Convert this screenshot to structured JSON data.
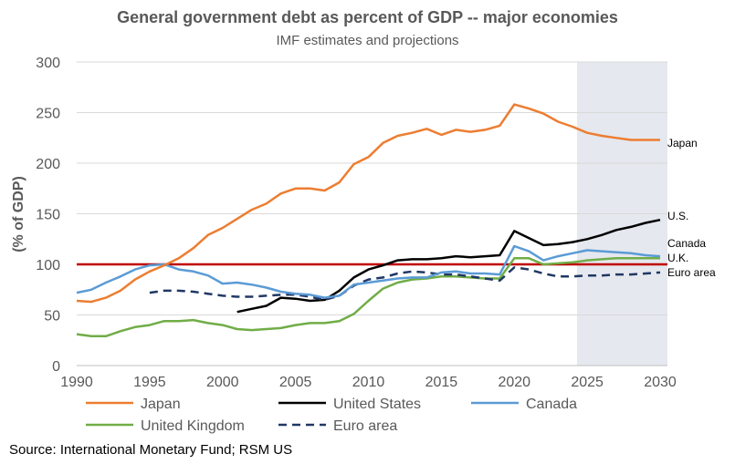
{
  "header": {
    "title": "General government debt as percent of GDP -- major economies",
    "subtitle": "IMF estimates and projections"
  },
  "footer": {
    "source": "Source: International Monetary Fund; RSM US"
  },
  "chart_data": {
    "type": "line",
    "title": "General government debt as percent of GDP -- major economies",
    "subtitle": "IMF estimates and projections",
    "xlabel": "",
    "ylabel": "(% of GDP)",
    "xlim": [
      1990,
      2030
    ],
    "ylim": [
      0,
      300
    ],
    "xticks": [
      1990,
      1995,
      2000,
      2005,
      2010,
      2015,
      2020,
      2025,
      2030
    ],
    "yticks": [
      0,
      50,
      100,
      150,
      200,
      250,
      300
    ],
    "grid": "horizontal",
    "legend_position": "bottom",
    "projection_shading": {
      "from": 2024.3,
      "to": 2030.5,
      "color": "#e5e8ee"
    },
    "reference_line": {
      "y": 100,
      "color": "#c00000"
    },
    "series": [
      {
        "name": "Japan",
        "end_label": "Japan",
        "color": "#ed7d31",
        "dash": false,
        "x": [
          1990,
          1991,
          1992,
          1993,
          1994,
          1995,
          1996,
          1997,
          1998,
          1999,
          2000,
          2001,
          2002,
          2003,
          2004,
          2005,
          2006,
          2007,
          2008,
          2009,
          2010,
          2011,
          2012,
          2013,
          2014,
          2015,
          2016,
          2017,
          2018,
          2019,
          2020,
          2021,
          2022,
          2023,
          2024,
          2025,
          2026,
          2027,
          2028,
          2029,
          2030
        ],
        "values": [
          64,
          63,
          67,
          74,
          85,
          93,
          99,
          106,
          116,
          129,
          136,
          145,
          154,
          160,
          170,
          175,
          175,
          173,
          181,
          199,
          206,
          220,
          227,
          230,
          234,
          228,
          233,
          231,
          233,
          237,
          258,
          254,
          249,
          241,
          236,
          230,
          227,
          225,
          223,
          223,
          223
        ]
      },
      {
        "name": "United States",
        "end_label": "U.S.",
        "color": "#000000",
        "dash": false,
        "x": [
          2001,
          2002,
          2003,
          2004,
          2005,
          2006,
          2007,
          2008,
          2009,
          2010,
          2011,
          2012,
          2013,
          2014,
          2015,
          2016,
          2017,
          2018,
          2019,
          2020,
          2021,
          2022,
          2023,
          2024,
          2025,
          2026,
          2027,
          2028,
          2029,
          2030
        ],
        "values": [
          53,
          56,
          59,
          67,
          66,
          64,
          65,
          74,
          87,
          95,
          99,
          104,
          105,
          105,
          106,
          108,
          107,
          108,
          109,
          133,
          126,
          119,
          120,
          122,
          125,
          129,
          134,
          137,
          141,
          144
        ]
      },
      {
        "name": "Canada",
        "end_label": "Canada",
        "color": "#5b9bd5",
        "dash": false,
        "x": [
          1990,
          1991,
          1992,
          1993,
          1994,
          1995,
          1996,
          1997,
          1998,
          1999,
          2000,
          2001,
          2002,
          2003,
          2004,
          2005,
          2006,
          2007,
          2008,
          2009,
          2010,
          2011,
          2012,
          2013,
          2014,
          2015,
          2016,
          2017,
          2018,
          2019,
          2020,
          2021,
          2022,
          2023,
          2024,
          2025,
          2026,
          2027,
          2028,
          2029,
          2030
        ],
        "values": [
          72,
          75,
          82,
          88,
          95,
          99,
          100,
          95,
          93,
          89,
          81,
          82,
          80,
          77,
          73,
          71,
          70,
          67,
          69,
          80,
          82,
          84,
          86,
          87,
          87,
          92,
          93,
          91,
          91,
          90,
          118,
          113,
          104,
          108,
          111,
          114,
          113,
          112,
          111,
          109,
          108
        ]
      },
      {
        "name": "United Kingdom",
        "end_label": "U.K.",
        "color": "#70ad47",
        "dash": false,
        "x": [
          1990,
          1991,
          1992,
          1993,
          1994,
          1995,
          1996,
          1997,
          1998,
          1999,
          2000,
          2001,
          2002,
          2003,
          2004,
          2005,
          2006,
          2007,
          2008,
          2009,
          2010,
          2011,
          2012,
          2013,
          2014,
          2015,
          2016,
          2017,
          2018,
          2019,
          2020,
          2021,
          2022,
          2023,
          2024,
          2025,
          2026,
          2027,
          2028,
          2029,
          2030
        ],
        "values": [
          31,
          29,
          29,
          34,
          38,
          40,
          44,
          44,
          45,
          42,
          40,
          36,
          35,
          36,
          37,
          40,
          42,
          42,
          44,
          51,
          64,
          76,
          82,
          85,
          86,
          88,
          88,
          87,
          86,
          86,
          106,
          106,
          100,
          101,
          102,
          104,
          105,
          106,
          106,
          106,
          106
        ]
      },
      {
        "name": "Euro area",
        "end_label": "Euro area",
        "color": "#203864",
        "dash": true,
        "x": [
          1995,
          1996,
          1997,
          1998,
          1999,
          2000,
          2001,
          2002,
          2003,
          2004,
          2005,
          2006,
          2007,
          2008,
          2009,
          2010,
          2011,
          2012,
          2013,
          2014,
          2015,
          2016,
          2017,
          2018,
          2019,
          2020,
          2021,
          2022,
          2023,
          2024,
          2025,
          2026,
          2027,
          2028,
          2029,
          2030
        ],
        "values": [
          72,
          74,
          74,
          73,
          71,
          69,
          68,
          68,
          69,
          70,
          70,
          68,
          65,
          69,
          79,
          85,
          87,
          91,
          93,
          92,
          90,
          90,
          88,
          86,
          84,
          97,
          95,
          91,
          88,
          88,
          89,
          89,
          90,
          90,
          91,
          92
        ]
      }
    ]
  }
}
